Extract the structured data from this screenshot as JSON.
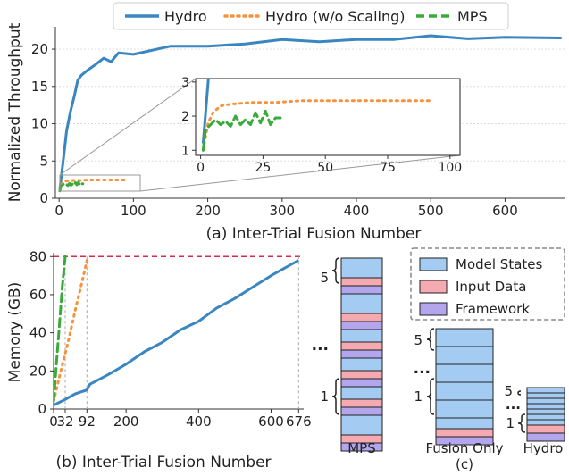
{
  "legend_top": [
    {
      "label": "Hydro",
      "color": "#3a86c0",
      "style": "solid"
    },
    {
      "label": "Hydro (w/o Scaling)",
      "color": "#f7923a",
      "style": "dotted"
    },
    {
      "label": "MPS",
      "color": "#3aaa3a",
      "style": "dashed"
    }
  ],
  "chart_data": [
    {
      "type": "line",
      "caption": "(a) Inter-Trial Fusion Number",
      "ylabel": "Normalized Throughput",
      "xlim": [
        -5,
        680
      ],
      "ylim": [
        0,
        23
      ],
      "xticks": [
        0,
        100,
        200,
        300,
        400,
        500,
        600
      ],
      "yticks": [
        0,
        5,
        10,
        15,
        20
      ],
      "grid": "y",
      "series": [
        {
          "name": "Hydro",
          "style": "solid",
          "color": "#3a86c0",
          "x": [
            1,
            3,
            6,
            10,
            15,
            20,
            25,
            30,
            40,
            50,
            60,
            70,
            80,
            100,
            150,
            200,
            250,
            300,
            350,
            400,
            450,
            500,
            550,
            600,
            676
          ],
          "y": [
            1.2,
            3,
            5.5,
            9,
            11.5,
            13.5,
            15.8,
            16.5,
            17.3,
            18,
            18.8,
            18.3,
            19.5,
            19.3,
            20.4,
            20.4,
            20.7,
            21.3,
            21.0,
            21.3,
            21.3,
            21.8,
            21.4,
            21.6,
            21.5
          ]
        },
        {
          "name": "Hydro (w/o Scaling)",
          "style": "dotted",
          "color": "#f7923a",
          "x": [
            1,
            3,
            5,
            8,
            12,
            20,
            30,
            40,
            50,
            60,
            70,
            80,
            92
          ],
          "y": [
            1.0,
            1.8,
            2.1,
            2.3,
            2.35,
            2.4,
            2.4,
            2.45,
            2.45,
            2.45,
            2.45,
            2.45,
            2.45
          ]
        },
        {
          "name": "MPS",
          "style": "dashed",
          "color": "#3aaa3a",
          "x": [
            1,
            2,
            4,
            6,
            8,
            10,
            12,
            14,
            16,
            18,
            20,
            22,
            24,
            26,
            28,
            30,
            32
          ],
          "y": [
            1.0,
            1.6,
            1.75,
            1.9,
            1.75,
            1.85,
            1.7,
            2.0,
            1.75,
            1.9,
            1.75,
            2.1,
            1.8,
            2.15,
            1.75,
            1.95,
            1.95
          ]
        }
      ],
      "inset": {
        "xlim": [
          -2,
          104
        ],
        "ylim": [
          0.85,
          3.1
        ],
        "xticks": [
          0,
          25,
          50,
          75,
          100
        ],
        "yticks": [
          1,
          2,
          3
        ]
      }
    },
    {
      "type": "line",
      "caption": "(b) Inter-Trial Fusion Number",
      "ylabel": "Memory (GB)",
      "xlim": [
        0,
        690
      ],
      "ylim": [
        0,
        82
      ],
      "xticks": [
        0,
        200,
        400,
        600
      ],
      "yticks": [
        0,
        20,
        40,
        60,
        80
      ],
      "marked_xticks": [
        32,
        92,
        676
      ],
      "limit_line": 80,
      "series": [
        {
          "name": "Hydro",
          "style": "solid",
          "color": "#3a86c0",
          "x": [
            0,
            32,
            60,
            92,
            100,
            150,
            200,
            250,
            300,
            350,
            400,
            450,
            500,
            550,
            600,
            676
          ],
          "y": [
            2,
            5,
            8,
            10,
            13,
            18,
            23.5,
            30,
            35,
            41.5,
            46,
            53,
            58,
            64,
            70,
            78
          ]
        },
        {
          "name": "Hydro (w/o Scaling)",
          "style": "dotted",
          "color": "#f7923a",
          "x": [
            0,
            20,
            40,
            60,
            80,
            92
          ],
          "y": [
            4,
            20,
            35,
            52,
            68,
            78
          ]
        },
        {
          "name": "MPS",
          "style": "dashed",
          "color": "#3aaa3a",
          "x": [
            0,
            8,
            16,
            24,
            32
          ],
          "y": [
            4,
            24,
            44,
            64,
            80
          ]
        }
      ]
    }
  ],
  "panel_c": {
    "caption": "(c)",
    "legend": [
      {
        "label": "Model States",
        "color": "#a4cbf2"
      },
      {
        "label": "Input Data",
        "color": "#f4aab0"
      },
      {
        "label": "Framework",
        "color": "#b4a6ec"
      }
    ],
    "stacks": [
      {
        "label": "MPS",
        "marks": [
          "5",
          "...",
          "1"
        ]
      },
      {
        "label": "Fusion Only",
        "marks": [
          "5",
          "...",
          "1"
        ]
      },
      {
        "label": "Hydro",
        "marks": [
          "5",
          "...",
          "1"
        ]
      }
    ]
  }
}
